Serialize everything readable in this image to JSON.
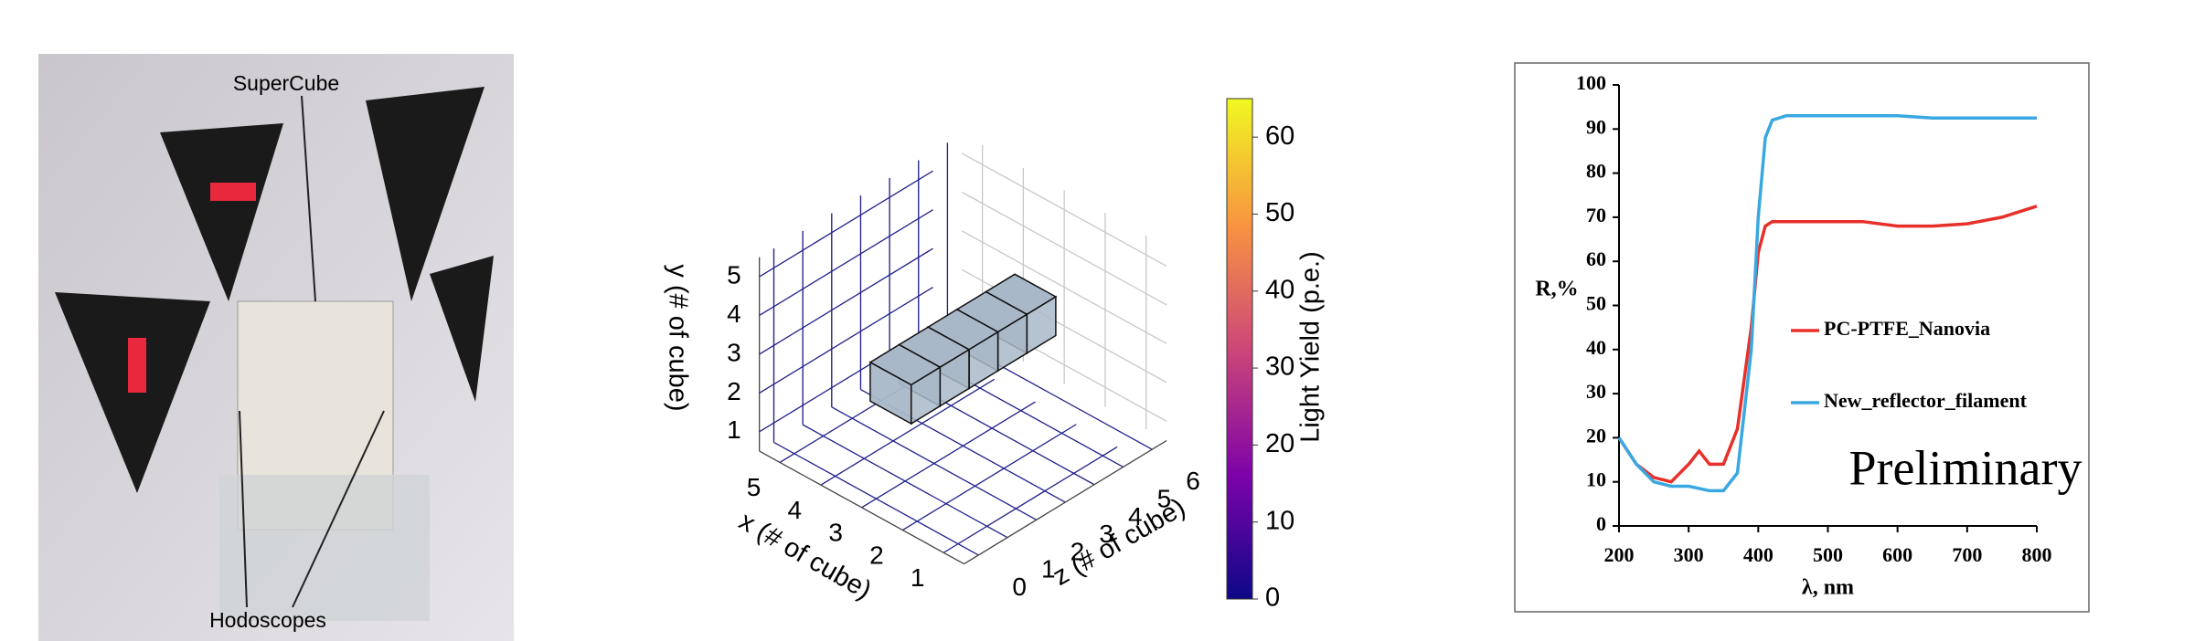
{
  "photo": {
    "labels": {
      "top": "SuperCube",
      "bottom": "Hodoscopes"
    }
  },
  "chart_data": [
    {
      "type": "scatter3d",
      "xlabel": "x (# of cube)",
      "ylabel": "y (# of cube)",
      "zlabel": "z (# of cube)",
      "xlim": [
        0.5,
        5.5
      ],
      "ylim": [
        0.5,
        5.5
      ],
      "zlim": [
        -0.5,
        6.5
      ],
      "xticks": [
        1,
        2,
        3,
        4,
        5
      ],
      "yticks": [
        1,
        2,
        3,
        4,
        5
      ],
      "zticks": [
        0,
        1,
        2,
        3,
        4,
        5,
        6
      ],
      "cubes": {
        "x": [
          3,
          3,
          3,
          3,
          3
        ],
        "y": [
          3,
          3,
          3,
          3,
          3
        ],
        "z": [
          1,
          2,
          3,
          4,
          5
        ],
        "color": "#a9b8c8"
      },
      "colorbar": {
        "label": "Light Yield (p.e.)",
        "lim": [
          0,
          65
        ],
        "ticks": [
          0,
          10,
          20,
          30,
          40,
          50,
          60
        ],
        "colormap": "plasma"
      }
    },
    {
      "type": "line",
      "ylabel": "R,%",
      "xlabel": "λ, nm",
      "annotation": "Preliminary",
      "x": [
        200,
        225,
        250,
        275,
        300,
        315,
        330,
        350,
        370,
        390,
        400,
        410,
        420,
        440,
        460,
        500,
        550,
        600,
        650,
        700,
        750,
        800
      ],
      "series": [
        {
          "name": "PC-PTFE_Nanovia",
          "color": "#e8302a",
          "values": [
            20,
            14,
            11,
            10,
            14,
            17,
            14,
            14,
            22,
            45,
            62,
            68,
            69,
            69,
            69,
            69,
            69,
            68,
            68,
            68.5,
            70,
            72.5
          ]
        },
        {
          "name": "New_reflector_filament",
          "color": "#3aa8e0",
          "values": [
            20,
            14,
            10,
            9,
            9,
            8.5,
            8,
            8,
            12,
            40,
            70,
            88,
            92,
            93,
            93,
            93,
            93,
            93,
            92.5,
            92.5,
            92.5,
            92.5
          ]
        }
      ],
      "xlim": [
        200,
        800
      ],
      "ylim": [
        0,
        100
      ],
      "xticks": [
        200,
        300,
        400,
        500,
        600,
        700,
        800
      ],
      "yticks": [
        0,
        10,
        20,
        30,
        40,
        50,
        60,
        70,
        80,
        90,
        100
      ]
    }
  ]
}
